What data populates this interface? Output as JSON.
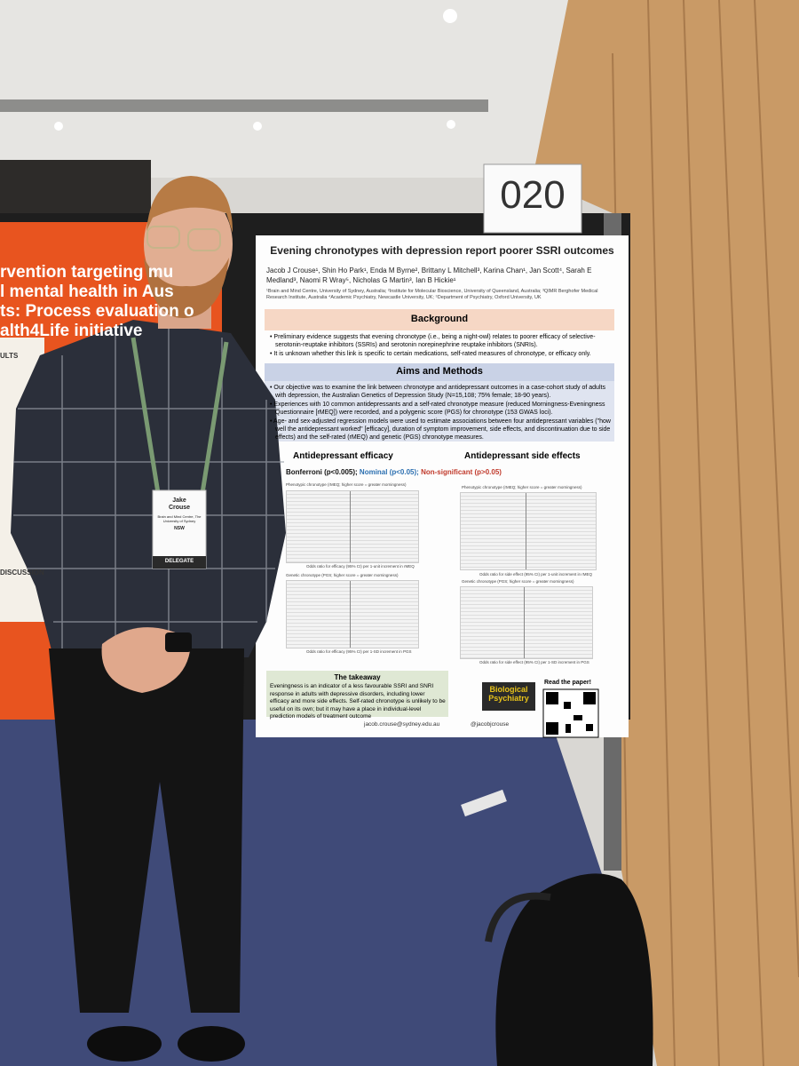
{
  "board_number": "020",
  "left_poster": {
    "lines": [
      "rvention targeting mu",
      "l mental health in Aus",
      "ts: Process evaluation o",
      "alth4Life initiative"
    ],
    "results_heading": "ULTS",
    "discussion_heading": "DISCUSSION"
  },
  "badge": {
    "name": "Jake Crouse",
    "affiliation": "Brain and Mind Centre, The University of Sydney",
    "state": "NSW",
    "role": "DELEGATE"
  },
  "poster": {
    "title": "Evening chronotypes with depression report poorer SSRI outcomes",
    "authors": "Jacob J Crouse¹, Shin Ho Park¹, Enda M Byrne², Brittany L Mitchell³, Karina Chan¹, Jan Scott⁴, Sarah E Medland³, Naomi R Wray⁵, Nicholas G Martin³, Ian B Hickie¹",
    "affiliations": "¹Brain and Mind Centre, University of Sydney, Australia; ²Institute for Molecular Bioscience, University of Queensland, Australia; ³QIMR Berghofer Medical Research Institute, Australia ⁴Academic Psychiatry, Newcastle University, UK; ⁵Department of Psychiatry, Oxford University, UK",
    "background": {
      "heading": "Background",
      "bullets": [
        "Preliminary evidence suggests that evening chronotype (i.e., being a night-owl) relates to poorer efficacy of selective-serotonin-reuptake inhibitors (SSRIs) and serotonin norepinephrine reuptake inhibitors (SNRIs).",
        "It is unknown whether this link is specific to certain medications, self-rated measures of chronotype, or efficacy only."
      ]
    },
    "aims": {
      "heading": "Aims and Methods",
      "bullets": [
        "Our objective was to examine the link between chronotype and antidepressant outcomes in a case-cohort study of adults with depression, the Australian Genetics of Depression Study (N=15,108; 75% female; 18-90 years).",
        "Experiences with 10 common antidepressants and a self-rated chronotype measure (reduced Morningness-Eveningness Questionnaire [rMEQ]) were recorded, and a polygenic score (PGS) for chronotype (153 GWAS loci).",
        "Age- and sex-adjusted regression models were used to estimate associations between four antidepressant variables (\"how well the antidepressant worked\" [efficacy], duration of symptom improvement, side effects, and discontinuation due to side effects) and the self-rated (rMEQ) and genetic (PGS) chronotype measures."
      ]
    },
    "results": {
      "efficacy_title": "Antidepressant efficacy",
      "side_effects_title": "Antidepressant side effects",
      "legend": [
        "Bonferroni (p<0.005);",
        "Nominal (p<0.05);",
        "Non-significant (p>0.05)"
      ],
      "phenotypic_caption": "Phenotypic chronotype (rMEQ; higher score = greater morningness)",
      "genetic_caption": "Genetic chronotype (PGS; higher score = greater morningness)",
      "efficacy_axis_rmeq": "Odds ratio for efficacy (95% CI) per 1-unit increment in rMEQ",
      "efficacy_axis_pgs": "Odds ratio for efficacy (95% CI) per 1-SD increment in PGS",
      "side_axis_rmeq": "Odds ratio for side effect (95% CI) per 1-unit increment in rMEQ",
      "side_axis_pgs": "Odds ratio for side effect (95% CI) per 1-SD increment in PGS"
    },
    "takeaway": {
      "heading": "The takeaway",
      "text": "Eveningness is an indicator of a less favourable SSRI and SNRI response in adults with depressive disorders, including lower efficacy and more side effects. Self-rated chronotype is unlikely to be useful on its own; but it may have a place in individual-level prediction models of treatment outcome"
    },
    "journal": "Biological Psychiatry",
    "read_paper": "Read the paper!",
    "email": "jacob.crouse@sydney.edu.au",
    "handle": "@jacobjcrouse"
  }
}
